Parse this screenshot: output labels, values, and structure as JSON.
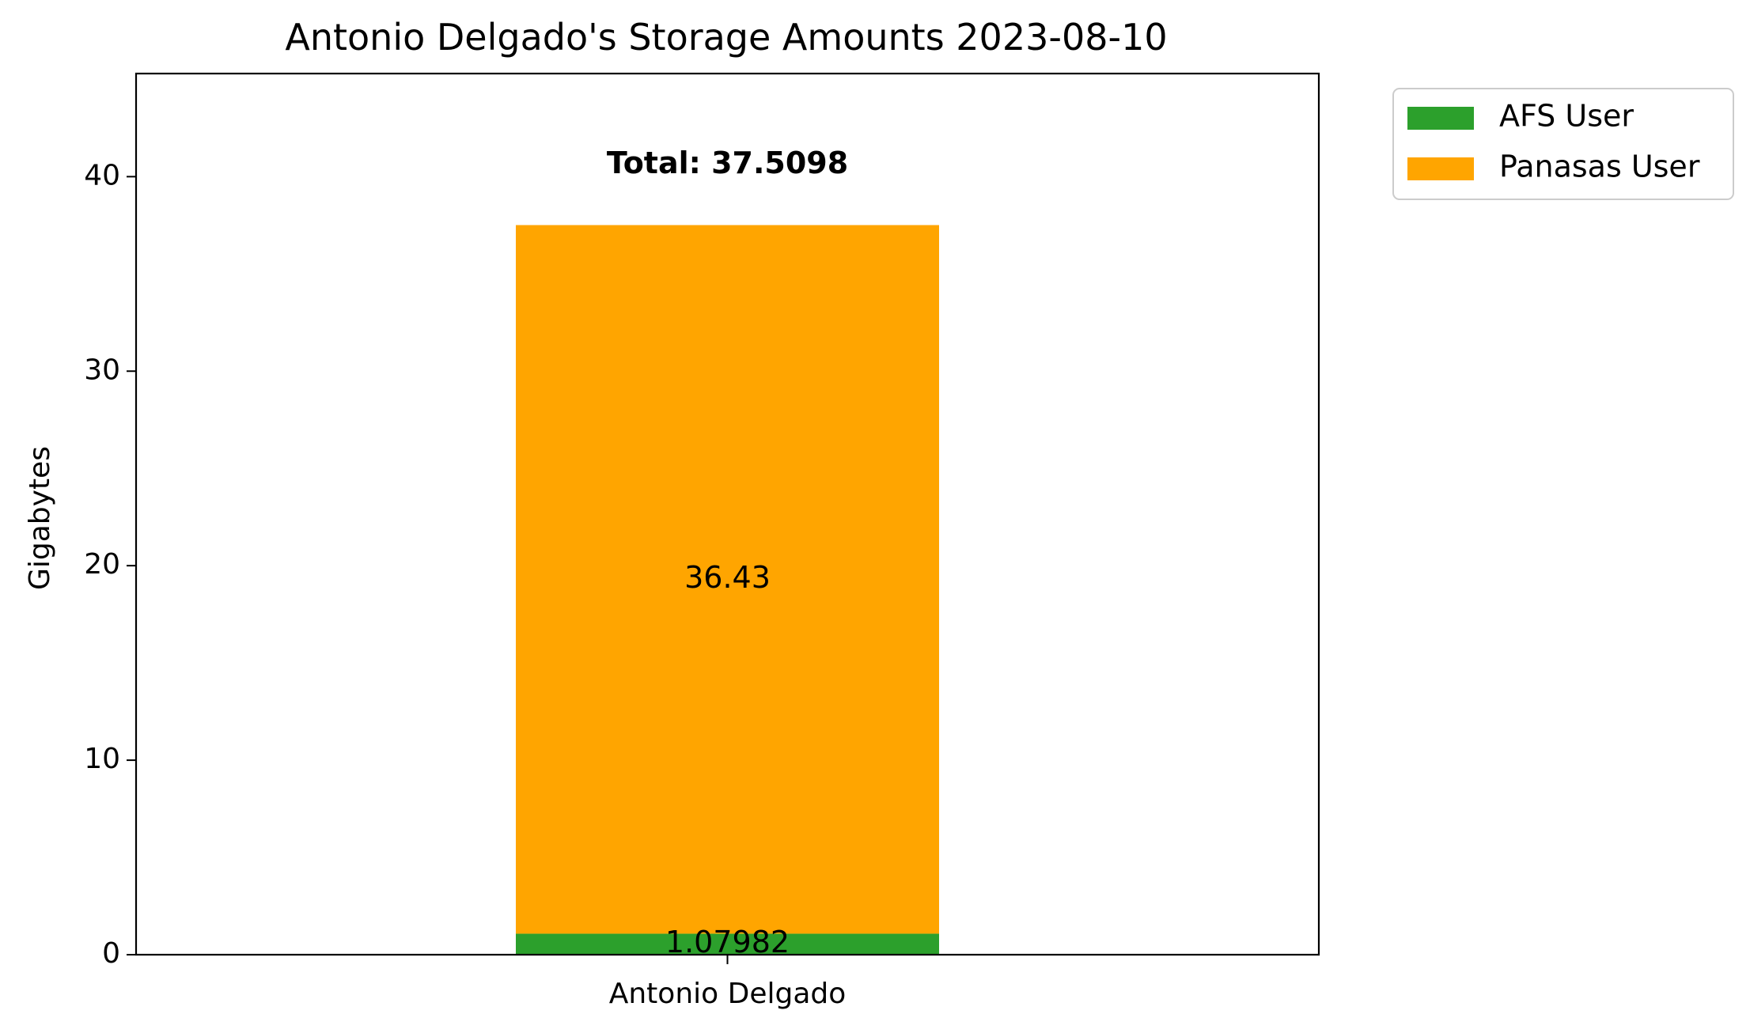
{
  "chart_data": {
    "type": "bar",
    "stacked": true,
    "title": "Antonio Delgado's Storage Amounts 2023-08-10",
    "xlabel": "",
    "ylabel": "Gigabytes",
    "categories": [
      "Antonio Delgado"
    ],
    "series": [
      {
        "name": "AFS User",
        "values": [
          1.07982
        ],
        "label": "1.07982",
        "color": "#2ca02c"
      },
      {
        "name": "Panasas User",
        "values": [
          36.43
        ],
        "label": "36.43",
        "color": "#ffa500"
      }
    ],
    "total_label": "Total: 37.5098",
    "ylim": [
      0,
      45.3
    ],
    "yticks": [
      0,
      10,
      20,
      30,
      40
    ],
    "grid": false,
    "legend_position": "outside-top-right"
  }
}
